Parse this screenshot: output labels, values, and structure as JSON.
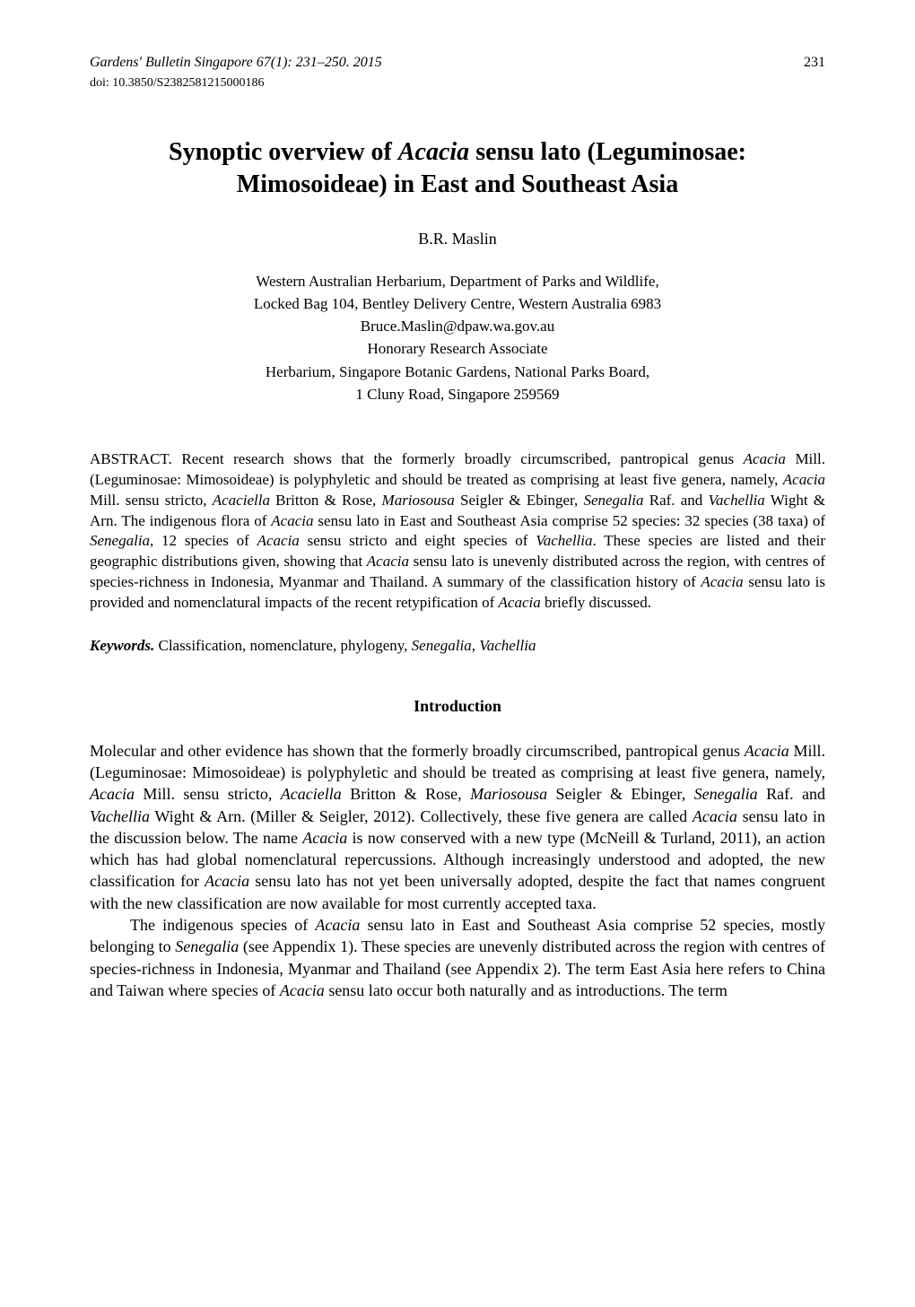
{
  "header": {
    "journal": "Gardens' Bulletin Singapore 67(1): 231–250. 2015",
    "page_number": "231",
    "doi": "doi: 10.3850/S2382581215000186"
  },
  "title": {
    "line1_prefix": "Synoptic overview of ",
    "line1_italic": "Acacia",
    "line1_suffix": " sensu lato (Leguminosae:",
    "line2": "Mimosoideae) in East and Southeast Asia"
  },
  "author": "B.R. Maslin",
  "affiliation": {
    "line1": "Western Australian Herbarium, Department of Parks and Wildlife,",
    "line2": "Locked Bag 104, Bentley Delivery Centre, Western Australia 6983",
    "line3": "Bruce.Maslin@dpaw.wa.gov.au",
    "line4": "Honorary Research Associate",
    "line5": "Herbarium, Singapore Botanic Gardens, National Parks Board,",
    "line6": "1 Cluny Road, Singapore 259569"
  },
  "abstract": {
    "label": "ABSTRACT",
    "p1": ". Recent research shows that the formerly broadly circumscribed, pantropical genus ",
    "i1": "Acacia",
    "p2": " Mill. (Leguminosae: Mimosoideae) is polyphyletic and should be treated as comprising at least five genera, namely, ",
    "i2": "Acacia",
    "p3": " Mill. sensu stricto, ",
    "i3": "Acaciella",
    "p4": " Britton & Rose, ",
    "i4": "Mariosousa",
    "p5": " Seigler & Ebinger, ",
    "i5": "Senegalia",
    "p6": " Raf. and ",
    "i6": "Vachellia",
    "p7": " Wight & Arn. The indigenous flora of ",
    "i7": "Acacia",
    "p8": " sensu lato in East and Southeast Asia comprise 52 species: 32 species (38 taxa) of ",
    "i8": "Senegalia",
    "p9": ", 12 species of ",
    "i9": "Acacia",
    "p10": " sensu stricto and eight species of ",
    "i10": "Vachellia",
    "p11": ". These species are listed and their geographic distributions given, showing that ",
    "i11": "Acacia",
    "p12": " sensu lato is unevenly distributed across the region, with centres of species-richness in Indonesia, Myanmar and Thailand. A summary of the classification history of ",
    "i12": "Acacia",
    "p13": " sensu lato is provided and nomenclatural impacts of the recent retypification of ",
    "i13": "Acacia",
    "p14": " briefly discussed."
  },
  "keywords": {
    "label": "Keywords.",
    "text_pre": " Classification, nomenclature, phylogeny, ",
    "i1": "Senegalia",
    "sep": ", ",
    "i2": "Vachellia"
  },
  "section_heading": "Introduction",
  "paragraph1": {
    "p1": "Molecular and other evidence has shown that the formerly broadly circumscribed, pantropical genus ",
    "i1": "Acacia",
    "p2": " Mill. (Leguminosae: Mimosoideae) is polyphyletic and should be treated as comprising at least five genera, namely, ",
    "i2": "Acacia",
    "p3": " Mill. sensu stricto, ",
    "i3": "Acaciella",
    "p4": " Britton & Rose, ",
    "i4": "Mariosousa",
    "p5": " Seigler & Ebinger, ",
    "i5": "Senegalia",
    "p6": " Raf. and ",
    "i6": "Vachellia",
    "p7": " Wight & Arn. (Miller & Seigler, 2012). Collectively, these five genera are called ",
    "i7": "Acacia",
    "p8": " sensu lato in the discussion below. The name ",
    "i8": "Acacia",
    "p9": " is now conserved with a new type (McNeill & Turland, 2011), an action which has had global nomenclatural repercussions. Although increasingly understood and adopted, the new classification for ",
    "i9": "Acacia",
    "p10": " sensu lato has not yet been universally adopted, despite the fact that names congruent with the new classification are now available for most currently accepted taxa."
  },
  "paragraph2": {
    "p1": "The indigenous species of ",
    "i1": "Acacia",
    "p2": " sensu lato in East and Southeast Asia comprise 52 species, mostly belonging to ",
    "i2": "Senegalia",
    "p3": " (see Appendix 1). These species are unevenly distributed across the region with centres of species-richness in Indonesia, Myanmar and Thailand (see Appendix 2). The term East Asia here refers to China and Taiwan where species of ",
    "i3": "Acacia",
    "p4": " sensu lato occur both naturally and as introductions. The term"
  }
}
